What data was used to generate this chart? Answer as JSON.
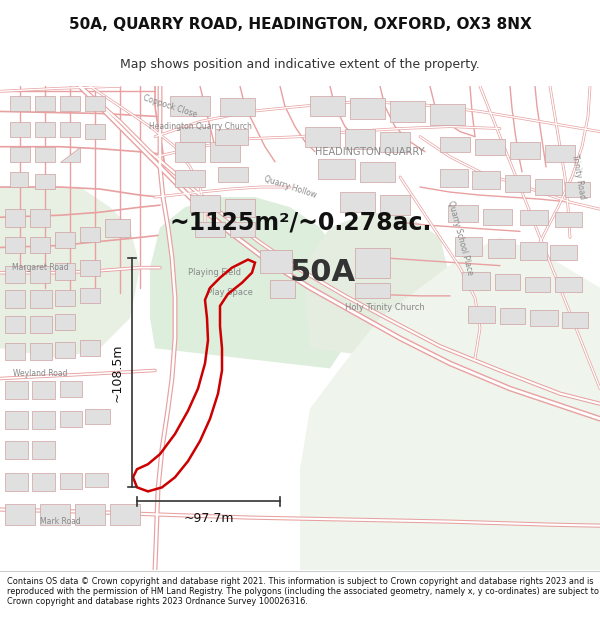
{
  "title_line1": "50A, QUARRY ROAD, HEADINGTON, OXFORD, OX3 8NX",
  "title_line2": "Map shows position and indicative extent of the property.",
  "area_text": "~1125m²/~0.278ac.",
  "label_50A": "50A",
  "dim_horizontal": "~97.7m",
  "dim_vertical": "~108.5m",
  "label_playing_field": "Playing Field",
  "label_play_space": "Play Space",
  "label_headington_quarry": "HEADINGTON QUARRY",
  "label_holy_trinity": "Holy Trinity Church",
  "label_headington_quarry_church": "Headington Quarry Church",
  "label_margaret_road": "Margaret Road",
  "label_weyland_road": "Weyland Road",
  "label_mark_road": "Mark Road",
  "label_coppock_close": "Coppock Close",
  "label_quarry_hollow": "Quarry Hollow",
  "label_quarry_school_place": "Quarry School Place",
  "label_trinity_road": "Trinity Road",
  "footer_text": "Contains OS data © Crown copyright and database right 2021. This information is subject to Crown copyright and database rights 2023 and is reproduced with the permission of HM Land Registry. The polygons (including the associated geometry, namely x, y co-ordinates) are subject to Crown copyright and database rights 2023 Ordnance Survey 100026316.",
  "map_bg": "#f7f7f7",
  "road_outline": "#e8a0a0",
  "road_fill": "#ffffff",
  "building_fill": "#e0e0e0",
  "building_outline": "#d0a0a0",
  "green_area1": "#e8f0e4",
  "green_area2": "#ddeedd",
  "green_area3": "#e4ede0",
  "property_color": "#cc0000",
  "dim_color": "#333333",
  "label_color": "#888888",
  "title_bg": "#ffffff",
  "footer_bg": "#ffffff"
}
